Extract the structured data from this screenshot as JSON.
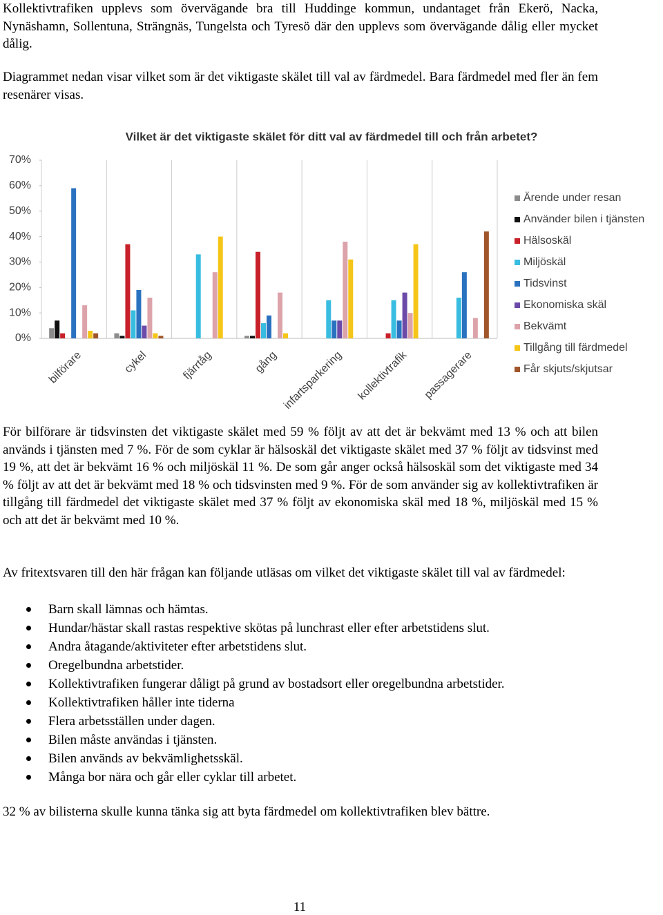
{
  "intro": [
    "Kollektivtrafiken upplevs som övervägande bra till Huddinge kommun, undantaget från Ekerö, Nacka, Nynäshamn, Sollentuna, Strängnäs, Tungelsta och Tyresö där den upplevs som övervägande dålig eller mycket dålig.",
    "Diagrammet nedan visar vilket som är det viktigaste skälet till val av färdmedel. Bara färdmedel med fler än fem resenärer visas."
  ],
  "chart_data": {
    "type": "bar",
    "title": "Vilket är det viktigaste skälet för ditt val av färdmedel till och från arbetet?",
    "categories": [
      "bilförare",
      "cykel",
      "fjärrtåg",
      "gång",
      "infartsparkering",
      "kollektivtrafik",
      "passagerare"
    ],
    "series": [
      {
        "name": "Ärende under resan",
        "color": "#8c8c8c",
        "values": [
          4,
          2,
          0,
          1,
          0,
          0,
          0
        ]
      },
      {
        "name": "Använder bilen i tjänsten",
        "color": "#111111",
        "values": [
          7,
          1,
          0,
          1,
          0,
          0,
          0
        ]
      },
      {
        "name": "Hälsoskäl",
        "color": "#c8202a",
        "values": [
          2,
          37,
          0,
          34,
          0,
          2,
          0
        ]
      },
      {
        "name": "Miljöskäl",
        "color": "#38bde0",
        "values": [
          0,
          11,
          33,
          6,
          15,
          15,
          16
        ]
      },
      {
        "name": "Tidsvinst",
        "color": "#2a72c0",
        "values": [
          59,
          19,
          0,
          9,
          7,
          7,
          26
        ]
      },
      {
        "name": "Ekonomiska skäl",
        "color": "#6b4aa8",
        "values": [
          0,
          5,
          0,
          0,
          7,
          18,
          0
        ]
      },
      {
        "name": "Bekvämt",
        "color": "#dca3aa",
        "values": [
          13,
          16,
          26,
          18,
          38,
          10,
          8
        ]
      },
      {
        "name": "Tillgång till färdmedel",
        "color": "#f5c518",
        "values": [
          3,
          2,
          40,
          2,
          31,
          37,
          0
        ]
      },
      {
        "name": "Får skjuts/skjutsar",
        "color": "#a0552a",
        "values": [
          2,
          1,
          0,
          0,
          0,
          0,
          42
        ]
      }
    ],
    "ylim": [
      0,
      70
    ],
    "yticks": [
      {
        "value": 0,
        "label": "0%"
      },
      {
        "value": 10,
        "label": "10%"
      },
      {
        "value": 20,
        "label": "20%"
      },
      {
        "value": 30,
        "label": "30%"
      },
      {
        "value": 40,
        "label": "40%"
      },
      {
        "value": 50,
        "label": "50%"
      },
      {
        "value": 60,
        "label": "60%"
      },
      {
        "value": 70,
        "label": "70%"
      }
    ],
    "legend": "right"
  },
  "discussion": [
    "För bilförare är tidsvinsten det viktigaste skälet med 59 % följt av att det är bekvämt med 13 % och att bilen används i tjänsten med 7 %. För de som cyklar är hälsoskäl det viktigaste skälet med 37 % följt av tidsvinst med 19 %, att det är bekvämt 16 % och miljöskäl 11 %. De som går anger också hälsoskäl som det viktigaste med 34 % följt av att det är bekvämt med 18 % och tidsvinsten med 9 %. För de som använder sig av kollektivtrafiken är tillgång till färdmedel det viktigaste skälet med 37 % följt av ekonomiska skäl med 18 %, miljöskäl med 15 % och att det är bekvämt med 10 %.",
    "Av fritextsvaren till den här frågan kan följande utläsas om vilket det viktigaste skälet till val av färdmedel:"
  ],
  "bullets": [
    "Barn skall lämnas och hämtas.",
    "Hundar/hästar skall rastas respektive skötas på lunchrast eller efter arbetstidens slut.",
    "Andra åtagande/aktiviteter efter arbetstidens slut.",
    "Oregelbundna arbetstider.",
    "Kollektivtrafiken fungerar dåligt på grund av bostadsort eller oregelbundna arbetstider.",
    "Kollektivtrafiken håller inte tiderna",
    "Flera arbetsställen under dagen.",
    "Bilen måste användas i tjänsten.",
    "Bilen används av bekvämlighetsskäl.",
    "Många bor nära och går eller cyklar till arbetet."
  ],
  "closing": "32 % av bilisterna skulle kunna tänka sig att byta färdmedel om kollektivtrafiken blev bättre.",
  "page_number": "11"
}
